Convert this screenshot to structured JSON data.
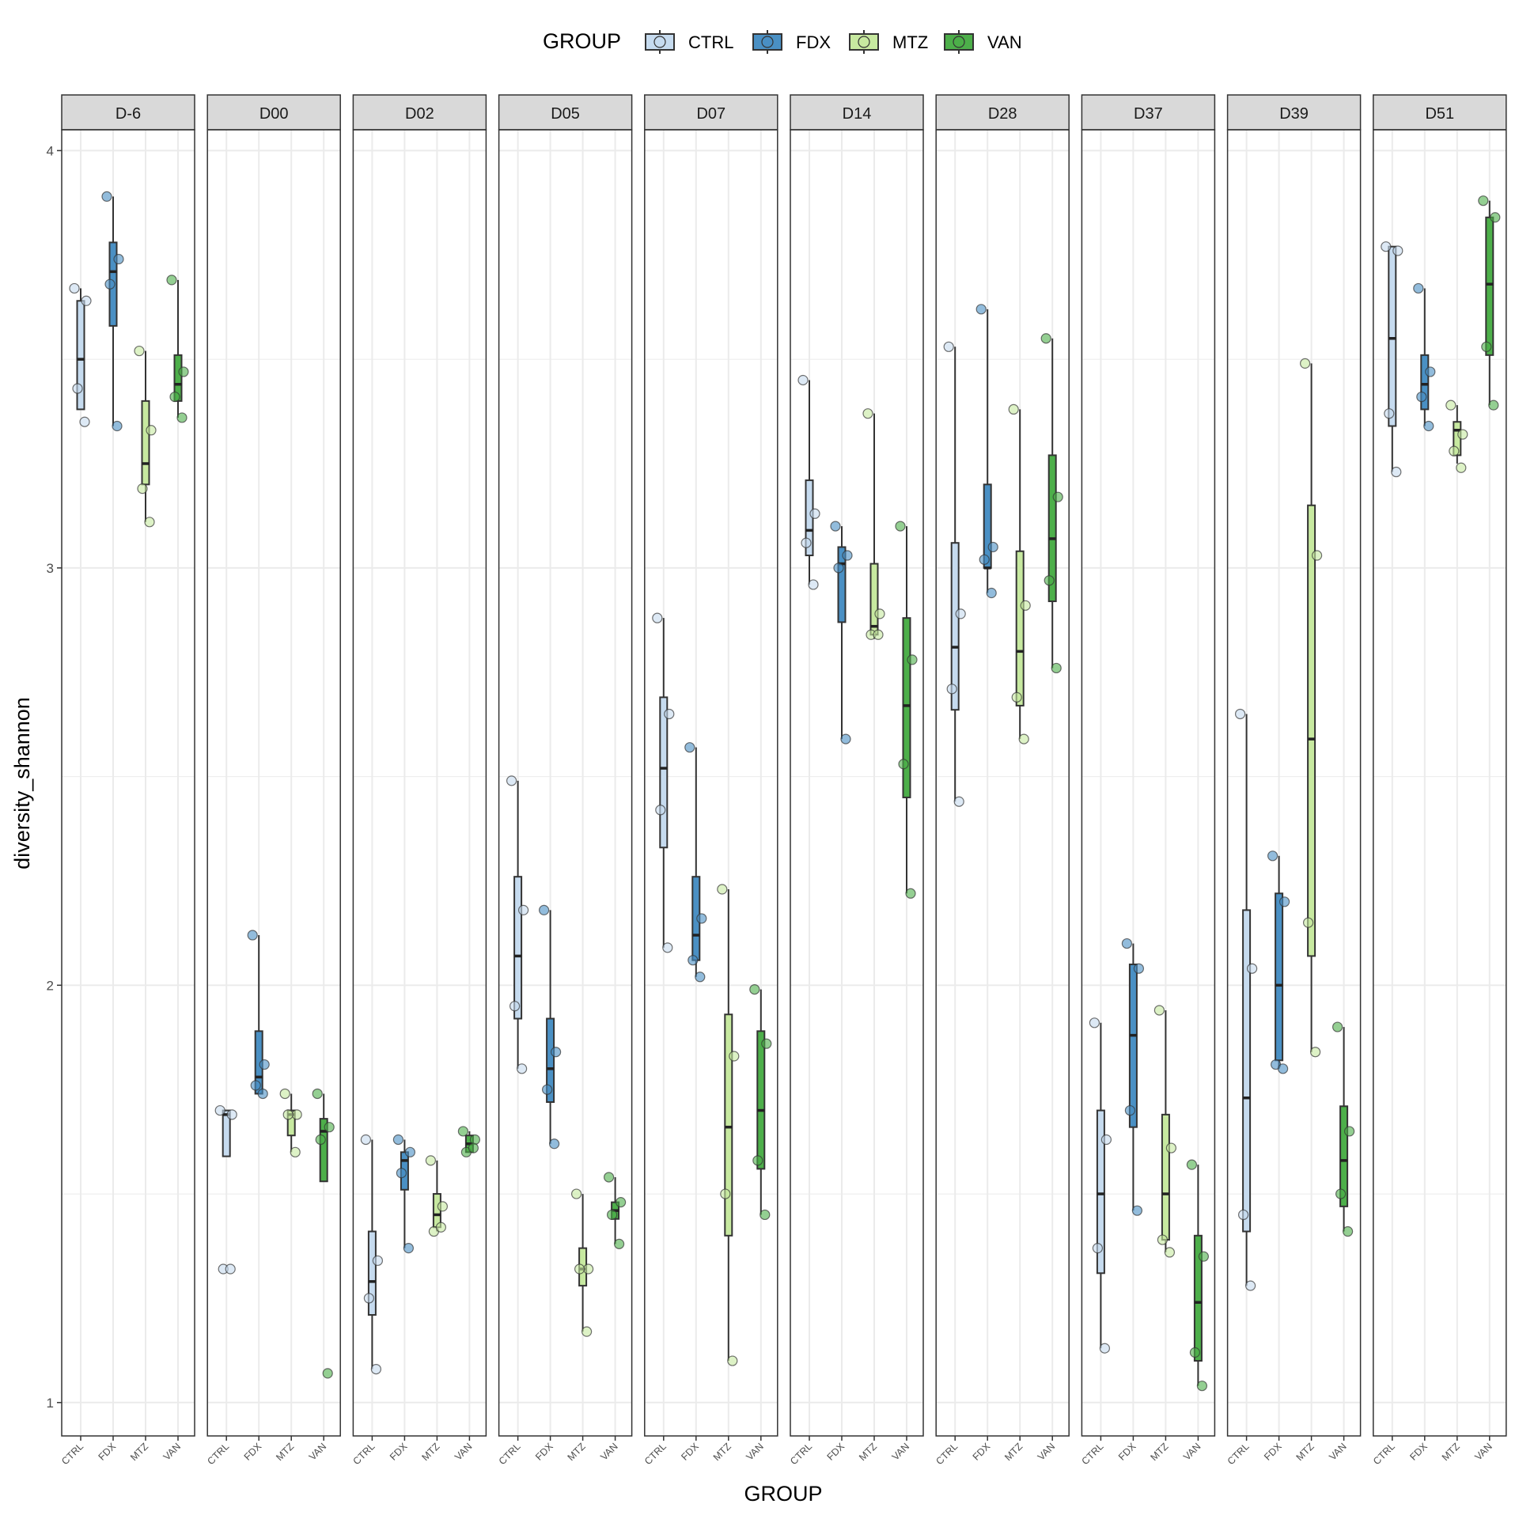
{
  "chart_data": {
    "type": "boxplot",
    "title": "",
    "xlabel": "GROUP",
    "ylabel": "diversity_shannon",
    "ylim": [
      0.92,
      4.05
    ],
    "yticks": [
      1,
      2,
      3,
      4
    ],
    "grid": true,
    "legend": {
      "title": "GROUP",
      "position": "top",
      "entries": [
        "CTRL",
        "FDX",
        "MTZ",
        "VAN"
      ]
    },
    "groups": [
      "CTRL",
      "FDX",
      "MTZ",
      "VAN"
    ],
    "colors": {
      "CTRL": "#c6dbef",
      "FDX": "#4a90c4",
      "MTZ": "#c7e9a0",
      "VAN": "#4daf4a"
    },
    "facets": [
      {
        "label": "D-6",
        "boxes": [
          {
            "group": "CTRL",
            "min": 3.38,
            "q1": 3.38,
            "median": 3.5,
            "q3": 3.64,
            "max": 3.67,
            "points": [
              3.67,
              3.64,
              3.43,
              3.35
            ]
          },
          {
            "group": "FDX",
            "min": 3.34,
            "q1": 3.58,
            "median": 3.71,
            "q3": 3.78,
            "max": 3.89,
            "points": [
              3.89,
              3.74,
              3.68,
              3.34
            ]
          },
          {
            "group": "MTZ",
            "min": 3.11,
            "q1": 3.2,
            "median": 3.25,
            "q3": 3.4,
            "max": 3.52,
            "points": [
              3.52,
              3.33,
              3.19,
              3.11
            ]
          },
          {
            "group": "VAN",
            "min": 3.36,
            "q1": 3.4,
            "median": 3.44,
            "q3": 3.51,
            "max": 3.69,
            "points": [
              3.69,
              3.47,
              3.41,
              3.36
            ]
          }
        ]
      },
      {
        "label": "D00",
        "boxes": [
          {
            "group": "CTRL",
            "min": 1.59,
            "q1": 1.59,
            "median": 1.69,
            "q3": 1.7,
            "max": 1.7,
            "points": [
              1.7,
              1.69,
              1.32,
              1.32
            ]
          },
          {
            "group": "FDX",
            "min": 1.74,
            "q1": 1.74,
            "median": 1.78,
            "q3": 1.89,
            "max": 2.12,
            "points": [
              2.12,
              1.81,
              1.76,
              1.74
            ]
          },
          {
            "group": "MTZ",
            "min": 1.6,
            "q1": 1.64,
            "median": 1.69,
            "q3": 1.7,
            "max": 1.74,
            "points": [
              1.74,
              1.69,
              1.69,
              1.6
            ]
          },
          {
            "group": "VAN",
            "min": 1.53,
            "q1": 1.53,
            "median": 1.65,
            "q3": 1.68,
            "max": 1.74,
            "points": [
              1.74,
              1.66,
              1.63,
              1.07
            ]
          }
        ]
      },
      {
        "label": "D02",
        "boxes": [
          {
            "group": "CTRL",
            "min": 1.08,
            "q1": 1.21,
            "median": 1.29,
            "q3": 1.41,
            "max": 1.63,
            "points": [
              1.63,
              1.34,
              1.25,
              1.08
            ]
          },
          {
            "group": "FDX",
            "min": 1.37,
            "q1": 1.51,
            "median": 1.58,
            "q3": 1.6,
            "max": 1.63,
            "points": [
              1.63,
              1.6,
              1.55,
              1.37
            ]
          },
          {
            "group": "MTZ",
            "min": 1.41,
            "q1": 1.42,
            "median": 1.45,
            "q3": 1.5,
            "max": 1.58,
            "points": [
              1.58,
              1.47,
              1.41,
              1.42
            ]
          },
          {
            "group": "VAN",
            "min": 1.6,
            "q1": 1.6,
            "median": 1.62,
            "q3": 1.64,
            "max": 1.65,
            "points": [
              1.65,
              1.63,
              1.6,
              1.61
            ]
          }
        ]
      },
      {
        "label": "D05",
        "boxes": [
          {
            "group": "CTRL",
            "min": 1.8,
            "q1": 1.92,
            "median": 2.07,
            "q3": 2.26,
            "max": 2.49,
            "points": [
              2.49,
              2.18,
              1.95,
              1.8
            ]
          },
          {
            "group": "FDX",
            "min": 1.62,
            "q1": 1.72,
            "median": 1.8,
            "q3": 1.92,
            "max": 2.18,
            "points": [
              2.18,
              1.84,
              1.75,
              1.62
            ]
          },
          {
            "group": "MTZ",
            "min": 1.17,
            "q1": 1.28,
            "median": 1.32,
            "q3": 1.37,
            "max": 1.5,
            "points": [
              1.5,
              1.32,
              1.32,
              1.17
            ]
          },
          {
            "group": "VAN",
            "min": 1.38,
            "q1": 1.44,
            "median": 1.46,
            "q3": 1.48,
            "max": 1.54,
            "points": [
              1.54,
              1.48,
              1.45,
              1.38
            ]
          }
        ]
      },
      {
        "label": "D07",
        "boxes": [
          {
            "group": "CTRL",
            "min": 2.09,
            "q1": 2.33,
            "median": 2.52,
            "q3": 2.69,
            "max": 2.88,
            "points": [
              2.88,
              2.65,
              2.42,
              2.09
            ]
          },
          {
            "group": "FDX",
            "min": 2.02,
            "q1": 2.06,
            "median": 2.12,
            "q3": 2.26,
            "max": 2.57,
            "points": [
              2.57,
              2.16,
              2.06,
              2.02
            ]
          },
          {
            "group": "MTZ",
            "min": 1.1,
            "q1": 1.4,
            "median": 1.66,
            "q3": 1.93,
            "max": 2.23,
            "points": [
              2.23,
              1.83,
              1.5,
              1.1
            ]
          },
          {
            "group": "VAN",
            "min": 1.45,
            "q1": 1.56,
            "median": 1.7,
            "q3": 1.89,
            "max": 1.99,
            "points": [
              1.99,
              1.86,
              1.58,
              1.45
            ]
          }
        ]
      },
      {
        "label": "D14",
        "boxes": [
          {
            "group": "CTRL",
            "min": 2.96,
            "q1": 3.03,
            "median": 3.09,
            "q3": 3.21,
            "max": 3.45,
            "points": [
              3.45,
              3.13,
              3.06,
              2.96
            ]
          },
          {
            "group": "FDX",
            "min": 2.59,
            "q1": 2.87,
            "median": 3.01,
            "q3": 3.05,
            "max": 3.1,
            "points": [
              3.1,
              3.03,
              3.0,
              2.59
            ]
          },
          {
            "group": "MTZ",
            "min": 2.83,
            "q1": 2.84,
            "median": 2.86,
            "q3": 3.01,
            "max": 3.37,
            "points": [
              3.37,
              2.89,
              2.84,
              2.84
            ]
          },
          {
            "group": "VAN",
            "min": 2.22,
            "q1": 2.45,
            "median": 2.67,
            "q3": 2.88,
            "max": 3.1,
            "points": [
              3.1,
              2.78,
              2.53,
              2.22
            ]
          }
        ]
      },
      {
        "label": "D28",
        "boxes": [
          {
            "group": "CTRL",
            "min": 2.44,
            "q1": 2.66,
            "median": 2.81,
            "q3": 3.06,
            "max": 3.53,
            "points": [
              3.53,
              2.89,
              2.71,
              2.44
            ]
          },
          {
            "group": "FDX",
            "min": 2.94,
            "q1": 3.0,
            "median": 3.0,
            "q3": 3.2,
            "max": 3.62,
            "points": [
              3.62,
              3.05,
              3.02,
              2.94
            ]
          },
          {
            "group": "MTZ",
            "min": 2.59,
            "q1": 2.67,
            "median": 2.8,
            "q3": 3.04,
            "max": 3.38,
            "points": [
              3.38,
              2.91,
              2.69,
              2.59
            ]
          },
          {
            "group": "VAN",
            "min": 2.76,
            "q1": 2.92,
            "median": 3.07,
            "q3": 3.27,
            "max": 3.55,
            "points": [
              3.55,
              3.17,
              2.97,
              2.76
            ]
          }
        ]
      },
      {
        "label": "D37",
        "boxes": [
          {
            "group": "CTRL",
            "min": 1.13,
            "q1": 1.31,
            "median": 1.5,
            "q3": 1.7,
            "max": 1.91,
            "points": [
              1.91,
              1.63,
              1.37,
              1.13
            ]
          },
          {
            "group": "FDX",
            "min": 1.46,
            "q1": 1.66,
            "median": 1.88,
            "q3": 2.05,
            "max": 2.1,
            "points": [
              2.1,
              2.04,
              1.7,
              1.46
            ]
          },
          {
            "group": "MTZ",
            "min": 1.36,
            "q1": 1.39,
            "median": 1.5,
            "q3": 1.69,
            "max": 1.94,
            "points": [
              1.94,
              1.61,
              1.39,
              1.36
            ]
          },
          {
            "group": "VAN",
            "min": 1.04,
            "q1": 1.1,
            "median": 1.24,
            "q3": 1.4,
            "max": 1.57,
            "points": [
              1.57,
              1.35,
              1.12,
              1.04
            ]
          }
        ]
      },
      {
        "label": "D39",
        "boxes": [
          {
            "group": "CTRL",
            "min": 1.28,
            "q1": 1.41,
            "median": 1.73,
            "q3": 2.18,
            "max": 2.65,
            "points": [
              2.65,
              2.04,
              1.45,
              1.28
            ]
          },
          {
            "group": "FDX",
            "min": 1.8,
            "q1": 1.82,
            "median": 2.0,
            "q3": 2.22,
            "max": 2.31,
            "points": [
              2.31,
              2.2,
              1.81,
              1.8
            ]
          },
          {
            "group": "MTZ",
            "min": 1.84,
            "q1": 2.07,
            "median": 2.59,
            "q3": 3.15,
            "max": 3.49,
            "points": [
              3.49,
              3.03,
              2.15,
              1.84
            ]
          },
          {
            "group": "VAN",
            "min": 1.41,
            "q1": 1.47,
            "median": 1.58,
            "q3": 1.71,
            "max": 1.9,
            "points": [
              1.9,
              1.65,
              1.5,
              1.41
            ]
          }
        ]
      },
      {
        "label": "D51",
        "boxes": [
          {
            "group": "CTRL",
            "min": 3.23,
            "q1": 3.34,
            "median": 3.55,
            "q3": 3.77,
            "max": 3.77,
            "points": [
              3.77,
              3.76,
              3.37,
              3.23
            ]
          },
          {
            "group": "FDX",
            "min": 3.34,
            "q1": 3.38,
            "median": 3.44,
            "q3": 3.51,
            "max": 3.67,
            "points": [
              3.67,
              3.47,
              3.41,
              3.34
            ]
          },
          {
            "group": "MTZ",
            "min": 3.25,
            "q1": 3.27,
            "median": 3.33,
            "q3": 3.35,
            "max": 3.39,
            "points": [
              3.39,
              3.32,
              3.28,
              3.24
            ]
          },
          {
            "group": "VAN",
            "min": 3.39,
            "q1": 3.51,
            "median": 3.68,
            "q3": 3.84,
            "max": 3.88,
            "points": [
              3.88,
              3.84,
              3.53,
              3.39
            ]
          }
        ]
      }
    ]
  }
}
